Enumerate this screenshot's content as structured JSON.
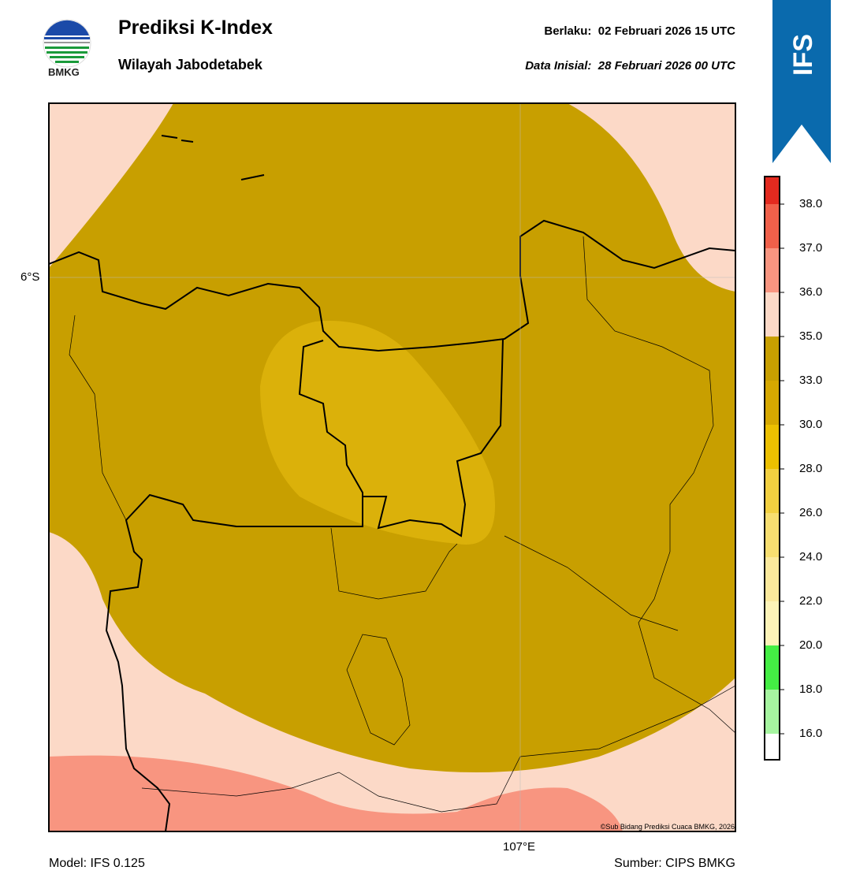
{
  "header": {
    "title": "Prediksi K-Index",
    "subtitle": "Wilayah Jabodetabek",
    "logo_text": "BMKG",
    "valid_label": "Berlaku:",
    "valid_time": "02 Februari 2026 15 UTC",
    "init_label": "Data Inisial:",
    "init_time": "28 Februari 2026 00 UTC",
    "badge": "IFS"
  },
  "map": {
    "lat_label": "6°S",
    "lon_label": "107°E",
    "credit": "©Sub Bidang Prediksi Cuaca BMKG, 2026"
  },
  "colorbar": {
    "labels": [
      "38.0",
      "37.0",
      "36.0",
      "35.0",
      "33.0",
      "30.0",
      "28.0",
      "26.0",
      "24.0",
      "22.0",
      "20.0",
      "18.0",
      "16.0"
    ]
  },
  "footer": {
    "model": "Model: IFS 0.125",
    "source": "Sumber: CIPS BMKG"
  }
}
